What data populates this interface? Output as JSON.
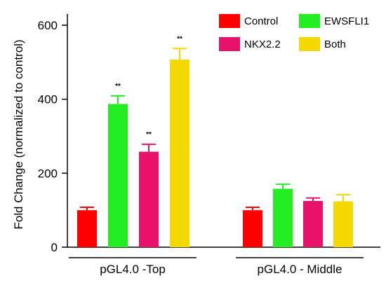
{
  "chart_data": {
    "type": "bar",
    "title": "",
    "xlabel": "",
    "ylabel": "Fold Change (normalized to control)",
    "ylim": [
      0,
      650
    ],
    "yticks": [
      0,
      200,
      400,
      600
    ],
    "legend_position": "top-right",
    "categories": [
      "pGL4.0 -Top",
      "pGL4.0 - Middle"
    ],
    "series": [
      {
        "name": "Control",
        "color": "#ff0000",
        "values": [
          100,
          100
        ],
        "errors": [
          8,
          8
        ],
        "annotations": [
          "",
          ""
        ]
      },
      {
        "name": "EWSFLI1",
        "color": "#22ee22",
        "values": [
          387,
          158
        ],
        "errors": [
          22,
          12
        ],
        "annotations": [
          "**",
          ""
        ]
      },
      {
        "name": "NKX2.2",
        "color": "#e8126b",
        "values": [
          258,
          125
        ],
        "errors": [
          20,
          8
        ],
        "annotations": [
          "**",
          ""
        ]
      },
      {
        "name": "Both",
        "color": "#f5d800",
        "values": [
          507,
          124
        ],
        "errors": [
          30,
          18
        ],
        "annotations": [
          "**",
          ""
        ]
      }
    ]
  }
}
